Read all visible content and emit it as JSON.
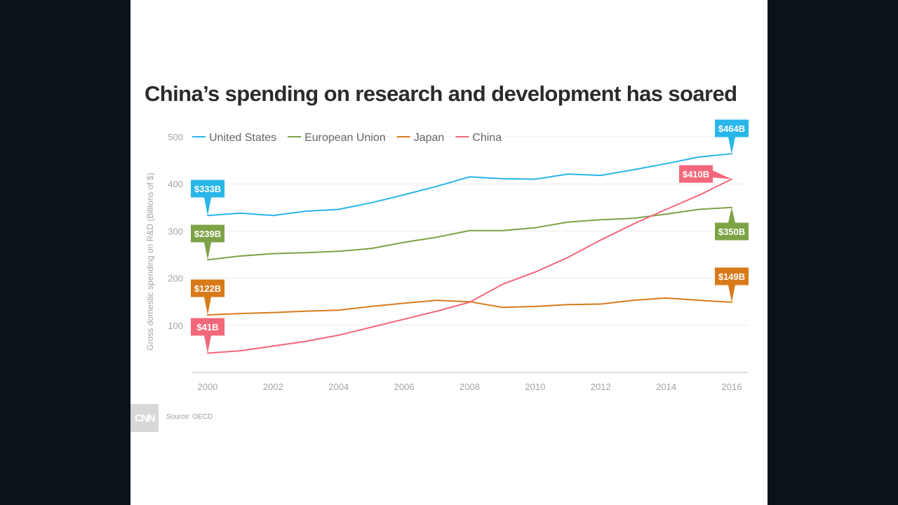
{
  "chart_data": {
    "type": "line",
    "title": "China’s spending on research and development has soared",
    "ylabel": "Gross domestic spending on R&D (Billions of $)",
    "xlabel": "",
    "x": [
      2000,
      2001,
      2002,
      2003,
      2004,
      2005,
      2006,
      2007,
      2008,
      2009,
      2010,
      2011,
      2012,
      2013,
      2014,
      2015,
      2016
    ],
    "xlim": [
      2000,
      2016
    ],
    "ylim": [
      0,
      500
    ],
    "xticks": [
      "2000",
      "2002",
      "2004",
      "2006",
      "2008",
      "2010",
      "2012",
      "2014",
      "2016"
    ],
    "yticks": [
      "100",
      "200",
      "300",
      "400",
      "500"
    ],
    "grid": true,
    "legend_position": "top-left",
    "series": [
      {
        "name": "United States",
        "color": "#29b6e8",
        "values": [
          333,
          338,
          333,
          342,
          346,
          360,
          377,
          395,
          415,
          411,
          410,
          421,
          418,
          430,
          443,
          457,
          464
        ],
        "end_labels": {
          "start": "$333B",
          "end": "$464B"
        }
      },
      {
        "name": "European Union",
        "color": "#7ea246",
        "values": [
          239,
          247,
          252,
          254,
          257,
          263,
          276,
          287,
          301,
          301,
          307,
          319,
          324,
          327,
          336,
          346,
          350
        ],
        "end_labels": {
          "start": "$239B",
          "end": "$350B"
        }
      },
      {
        "name": "Japan",
        "color": "#d97a1a",
        "values": [
          122,
          125,
          127,
          130,
          132,
          140,
          147,
          153,
          150,
          138,
          140,
          144,
          145,
          153,
          158,
          153,
          149
        ],
        "end_labels": {
          "start": "$122B",
          "end": "$149B"
        }
      },
      {
        "name": "China",
        "color": "#f2677a",
        "values": [
          41,
          46,
          56,
          66,
          79,
          96,
          113,
          130,
          149,
          187,
          213,
          244,
          281,
          315,
          346,
          376,
          410
        ],
        "end_labels": {
          "start": "$41B",
          "end": "$410B"
        }
      }
    ]
  },
  "footer": {
    "logo_text": "CNN",
    "source": "Source: OECD"
  }
}
